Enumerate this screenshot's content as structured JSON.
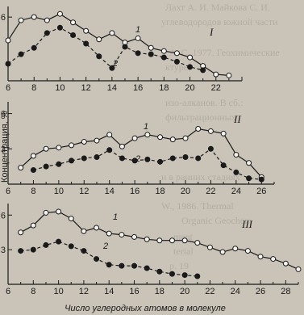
{
  "background_text": [
    "Лахт А. И. Майкова С. И.",
    "углеводородов южной части",
    "А. С. 1977. Геохимические",
    "ктуре",
    "изо-алканов. В сб.: ",
    "фильтрационных",
    "и в ранних стадиях",
    "W., 1986. Thermal",
    "Organic Geochem",
    "ment",
    "terial",
    "р. 19"
  ],
  "colors": {
    "line": "#1a1a1a",
    "open_marker": "#f4f2ee",
    "filled_marker": "#1a1a1a",
    "background": "#c9c3b8"
  },
  "chart_data": [
    {
      "type": "line",
      "panel": "I",
      "ylabel": "",
      "y_ticks": [
        "6"
      ],
      "x_ticks": [
        "6",
        "8",
        "10",
        "12",
        "14",
        "16",
        "18",
        "20",
        "22"
      ],
      "xlim": [
        6,
        24
      ],
      "ylim": [
        0,
        7
      ],
      "series": [
        {
          "name": "1",
          "marker": "open",
          "x": [
            6,
            7,
            8,
            9,
            10,
            11,
            12,
            13,
            14,
            15,
            16,
            17,
            18,
            19,
            20,
            21,
            22,
            23
          ],
          "values": [
            3.8,
            5.7,
            6.0,
            5.7,
            6.3,
            5.5,
            4.7,
            3.9,
            4.5,
            3.6,
            4.0,
            3.1,
            2.8,
            2.6,
            2.2,
            1.4,
            0.6,
            0.5
          ]
        },
        {
          "name": "2",
          "marker": "filled",
          "x": [
            6,
            7,
            8,
            9,
            10,
            11,
            12,
            13,
            14,
            15,
            16,
            17,
            18,
            19,
            20,
            21
          ],
          "values": [
            1.6,
            2.5,
            3.1,
            4.5,
            5.0,
            4.3,
            3.5,
            2.3,
            1.2,
            3.2,
            2.6,
            2.5,
            2.2,
            1.8,
            1.3,
            1.0
          ]
        }
      ]
    },
    {
      "type": "line",
      "panel": "II",
      "ylabel": "Концентрация, %",
      "y_ticks": [
        "6",
        "3"
      ],
      "x_ticks": [
        "6",
        "8",
        "10",
        "12",
        "14",
        "16",
        "18",
        "20",
        "22",
        "24",
        "26"
      ],
      "xlim": [
        6,
        27
      ],
      "ylim": [
        0,
        7
      ],
      "series": [
        {
          "name": "1",
          "marker": "open",
          "x": [
            7,
            8,
            9,
            10,
            11,
            12,
            13,
            14,
            15,
            16,
            17,
            18,
            19,
            20,
            21,
            22,
            23,
            24,
            25,
            26
          ],
          "values": [
            1.4,
            2.4,
            3.0,
            3.1,
            3.3,
            3.6,
            3.7,
            4.2,
            3.2,
            3.9,
            4.2,
            4.0,
            3.8,
            3.9,
            4.7,
            4.5,
            4.3,
            2.5,
            1.8,
            0.6
          ]
        },
        {
          "name": "2",
          "marker": "filled",
          "x": [
            8,
            9,
            10,
            11,
            12,
            13,
            14,
            15,
            16,
            17,
            18,
            19,
            20,
            21,
            22,
            23,
            24,
            25,
            26
          ],
          "values": [
            1.2,
            1.5,
            1.7,
            2.0,
            2.2,
            2.3,
            2.9,
            2.2,
            2.0,
            2.1,
            1.9,
            2.2,
            2.3,
            2.2,
            3.0,
            1.6,
            1.0,
            0.5,
            0.4
          ]
        }
      ]
    },
    {
      "type": "line",
      "panel": "III",
      "ylabel": "",
      "xlabel": "Число углеродных атомов в молекуле",
      "y_ticks": [
        "6",
        "3"
      ],
      "x_ticks": [
        "6",
        "8",
        "10",
        "12",
        "14",
        "16",
        "18",
        "20",
        "22",
        "24",
        "26",
        "28"
      ],
      "xlim": [
        6,
        29
      ],
      "ylim": [
        0,
        7
      ],
      "series": [
        {
          "name": "1",
          "marker": "open",
          "x": [
            7,
            8,
            9,
            10,
            11,
            12,
            13,
            14,
            15,
            16,
            17,
            18,
            19,
            20,
            21,
            22,
            23,
            24,
            25,
            26,
            27,
            28,
            29
          ],
          "values": [
            4.5,
            5.1,
            6.2,
            6.3,
            5.7,
            4.6,
            4.9,
            4.4,
            4.3,
            4.1,
            3.9,
            3.8,
            3.8,
            3.8,
            3.6,
            3.2,
            2.8,
            3.1,
            2.9,
            2.4,
            2.2,
            1.8,
            1.3
          ]
        },
        {
          "name": "2",
          "marker": "filled",
          "x": [
            7,
            8,
            9,
            10,
            11,
            12,
            13,
            14,
            15,
            16,
            17,
            18,
            19,
            20,
            21
          ],
          "values": [
            2.9,
            3.0,
            3.4,
            3.7,
            3.3,
            2.9,
            2.2,
            1.7,
            1.6,
            1.6,
            1.4,
            1.1,
            0.9,
            0.8,
            0.7
          ]
        }
      ]
    }
  ]
}
